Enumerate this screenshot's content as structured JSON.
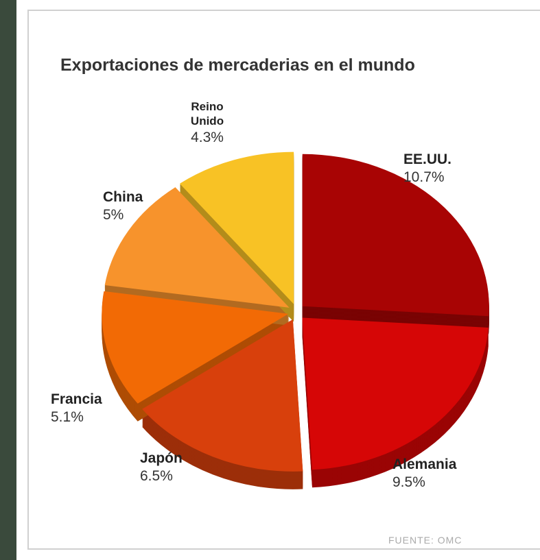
{
  "chart_data": {
    "type": "pie",
    "title": "Exportaciones de mercaderias en el mundo",
    "categories": [
      "EE.UU.",
      "Alemania",
      "Japón",
      "Francia",
      "China",
      "Reino Unido"
    ],
    "values": [
      10.7,
      9.5,
      6.5,
      5.1,
      5,
      4.3
    ],
    "value_labels": [
      "10.7%",
      "9.5%",
      "6.5%",
      "5.1%",
      "5%",
      "4.3%"
    ],
    "colors": [
      "#a80404",
      "#d60606",
      "#d8400c",
      "#f26a05",
      "#f7932c",
      "#f8c225"
    ],
    "source": "FUENTE: OMC"
  }
}
